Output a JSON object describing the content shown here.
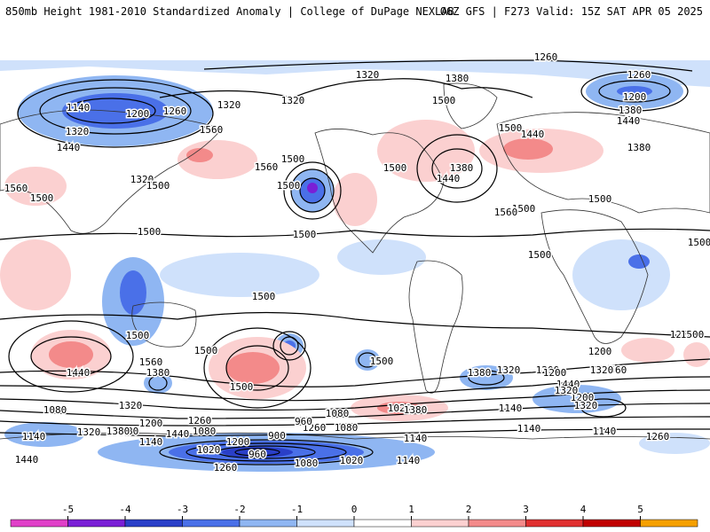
{
  "header": {
    "title_left": "850mb Height 1981-2010 Standardized Anomaly | College of DuPage NEXLAB",
    "title_right": "06Z GFS | F273 Valid: 15Z SAT APR 05 2025"
  },
  "legend": {
    "labels": [
      "-5",
      "-4",
      "-3",
      "-2",
      "-1",
      "0",
      "1",
      "2",
      "3",
      "4",
      "5"
    ],
    "colors": [
      "#e040c8",
      "#7a1fd6",
      "#2a3fc8",
      "#4a70e8",
      "#8fb6f2",
      "#cfe1fb",
      "#ffffff",
      "#fbd0d0",
      "#f38a8a",
      "#e03030",
      "#c00000",
      "#f5a000"
    ]
  },
  "contour_labels": [
    "1260",
    "1320",
    "1380",
    "1260",
    "1200",
    "1140",
    "1200",
    "1260",
    "1320",
    "1320",
    "1380",
    "1440",
    "1500",
    "1560",
    "1500",
    "1440",
    "1320",
    "1440",
    "1500",
    "1500",
    "1560",
    "1380",
    "1440",
    "1500",
    "1380",
    "1320",
    "1500",
    "1560",
    "1500",
    "1500",
    "1500",
    "1500",
    "1500",
    "1500",
    "1500",
    "1500",
    "1560",
    "1500",
    "1500",
    "1500",
    "1440",
    "1500",
    "1560",
    "1380",
    "1320",
    "1260",
    "1200",
    "1140",
    "1080",
    "1140",
    "1380",
    "1440",
    "1200",
    "1260",
    "1080",
    "1020",
    "1140",
    "1200",
    "1560",
    "1440",
    "1260",
    "1200",
    "1380",
    "1320",
    "960",
    "1080",
    "1020",
    "1140",
    "900",
    "960",
    "1080",
    "1020",
    "1140",
    "1080",
    "1380",
    "1320",
    "1440",
    "1380",
    "1260",
    "1320",
    "1200",
    "1140",
    "1140",
    "1260",
    "1320",
    "1200",
    "1320",
    "1500"
  ],
  "colors": {
    "neg1": "#cfe1fb",
    "neg2": "#8fb6f2",
    "neg3": "#4a70e8",
    "neg4": "#2a3fc8",
    "neg5": "#7a1fd6",
    "pos1": "#fbd0d0",
    "pos2": "#f38a8a",
    "pos3": "#e03030",
    "land": "#333333",
    "contour": "#000000"
  }
}
